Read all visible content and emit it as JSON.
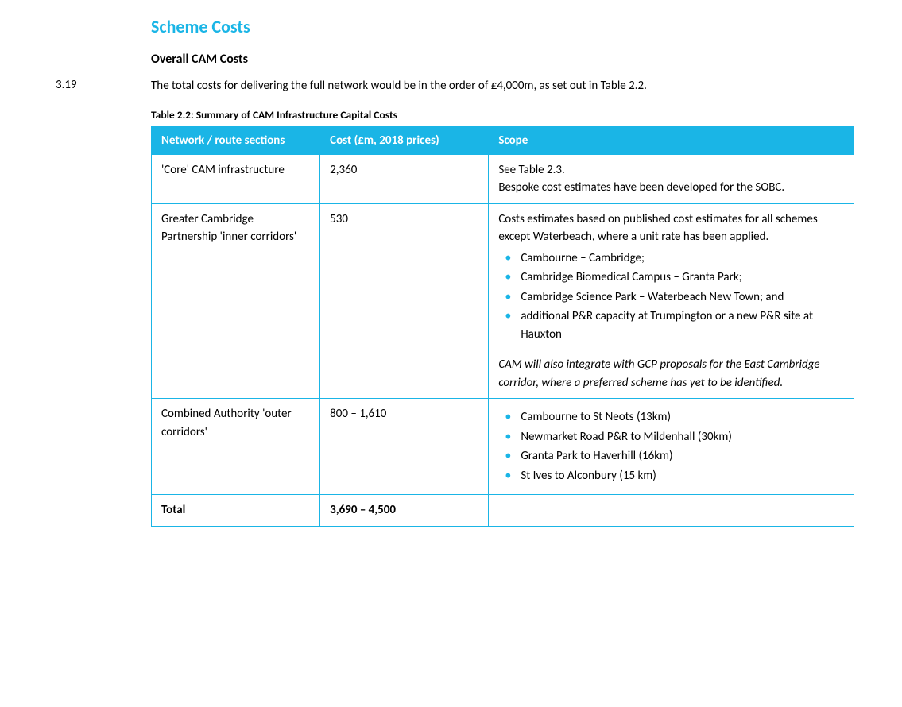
{
  "colors": {
    "accent": "#1ab5e6",
    "text": "#000000",
    "background": "#ffffff"
  },
  "heading": "Scheme Costs",
  "subheading": "Overall CAM Costs",
  "para": {
    "num": "3.19",
    "text": "The total costs for delivering the full network would be in the order of £4,000m, as set out in Table 2.2."
  },
  "table": {
    "caption": "Table 2.2: Summary of CAM Infrastructure Capital Costs",
    "columns": {
      "network": "Network / route sections",
      "cost": "Cost (£m, 2018 prices)",
      "scope": "Scope"
    },
    "rows": [
      {
        "network": "'Core' CAM infrastructure",
        "cost": "2,360",
        "scope_lines": [
          "See Table 2.3.",
          "Bespoke cost estimates have been developed for the SOBC."
        ]
      },
      {
        "network": "Greater Cambridge Partnership 'inner corridors'",
        "cost": "530",
        "scope_intro": "Costs estimates based on published cost estimates for all schemes except Waterbeach, where a unit rate has been applied.",
        "scope_bullets": [
          "Cambourne – Cambridge;",
          "Cambridge Biomedical Campus – Granta Park;",
          "Cambridge Science Park – Waterbeach New Town; and",
          "additional P&R capacity at Trumpington or a new P&R site at Hauxton"
        ],
        "scope_note": "CAM will also integrate with GCP proposals for the East Cambridge corridor, where a preferred scheme has yet to be identified."
      },
      {
        "network": "Combined Authority 'outer corridors'",
        "cost": "800 – 1,610",
        "scope_bullets": [
          "Cambourne to St Neots (13km)",
          "Newmarket Road P&R to Mildenhall (30km)",
          "Granta Park to Haverhill (16km)",
          "St Ives to Alconbury (15 km)"
        ]
      }
    ],
    "total": {
      "label": "Total",
      "cost": "3,690 – 4,500",
      "scope": ""
    }
  }
}
